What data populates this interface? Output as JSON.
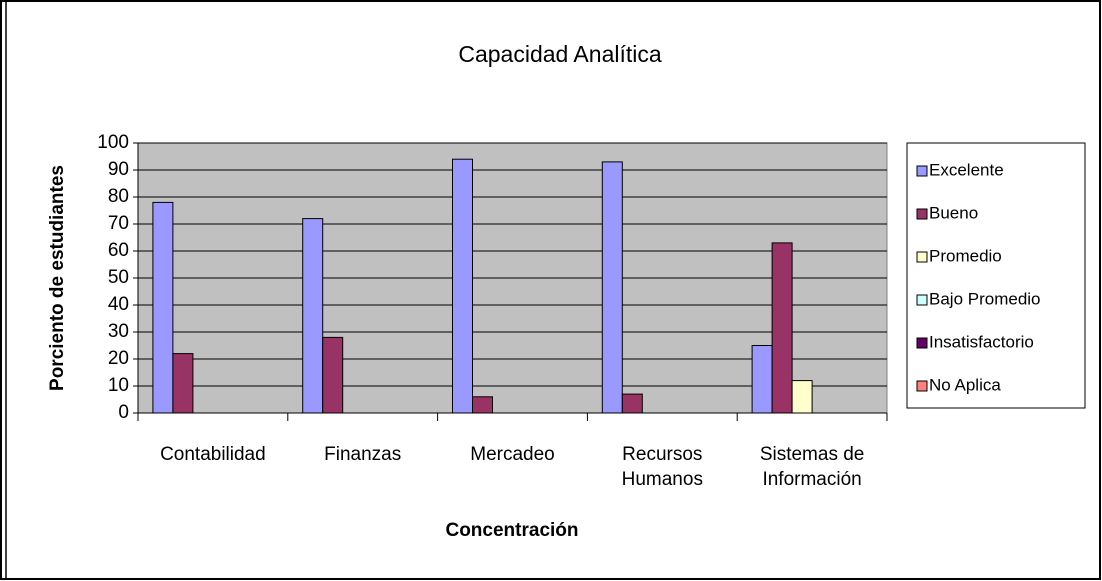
{
  "chart_data": {
    "type": "bar",
    "title": "Capacidad Analítica",
    "x_label": "Concentración",
    "y_label": "Porciento de estudiantes",
    "categories": [
      "Contabilidad",
      "Finanzas",
      "Mercadeo",
      "Recursos Humanos",
      "Sistemas de Información"
    ],
    "series": [
      {
        "name": "Excelente",
        "color": "#9999ff",
        "values": [
          78,
          72,
          94,
          93,
          25
        ]
      },
      {
        "name": "Bueno",
        "color": "#993366",
        "values": [
          22,
          28,
          6,
          7,
          63
        ]
      },
      {
        "name": "Promedio",
        "color": "#ffffcc",
        "values": [
          0,
          0,
          0,
          0,
          12
        ]
      },
      {
        "name": "Bajo Promedio",
        "color": "#ccffff",
        "values": [
          0,
          0,
          0,
          0,
          0
        ]
      },
      {
        "name": "Insatisfactorio",
        "color": "#660066",
        "values": [
          0,
          0,
          0,
          0,
          0
        ]
      },
      {
        "name": "No Aplica",
        "color": "#ff8080",
        "values": [
          0,
          0,
          0,
          0,
          0
        ]
      }
    ],
    "ylim": [
      0,
      100
    ],
    "yticks": [
      0,
      10,
      20,
      30,
      40,
      50,
      60,
      70,
      80,
      90,
      100
    ],
    "grid": true,
    "plot_background": "#c0c0c0",
    "legend": "right"
  }
}
